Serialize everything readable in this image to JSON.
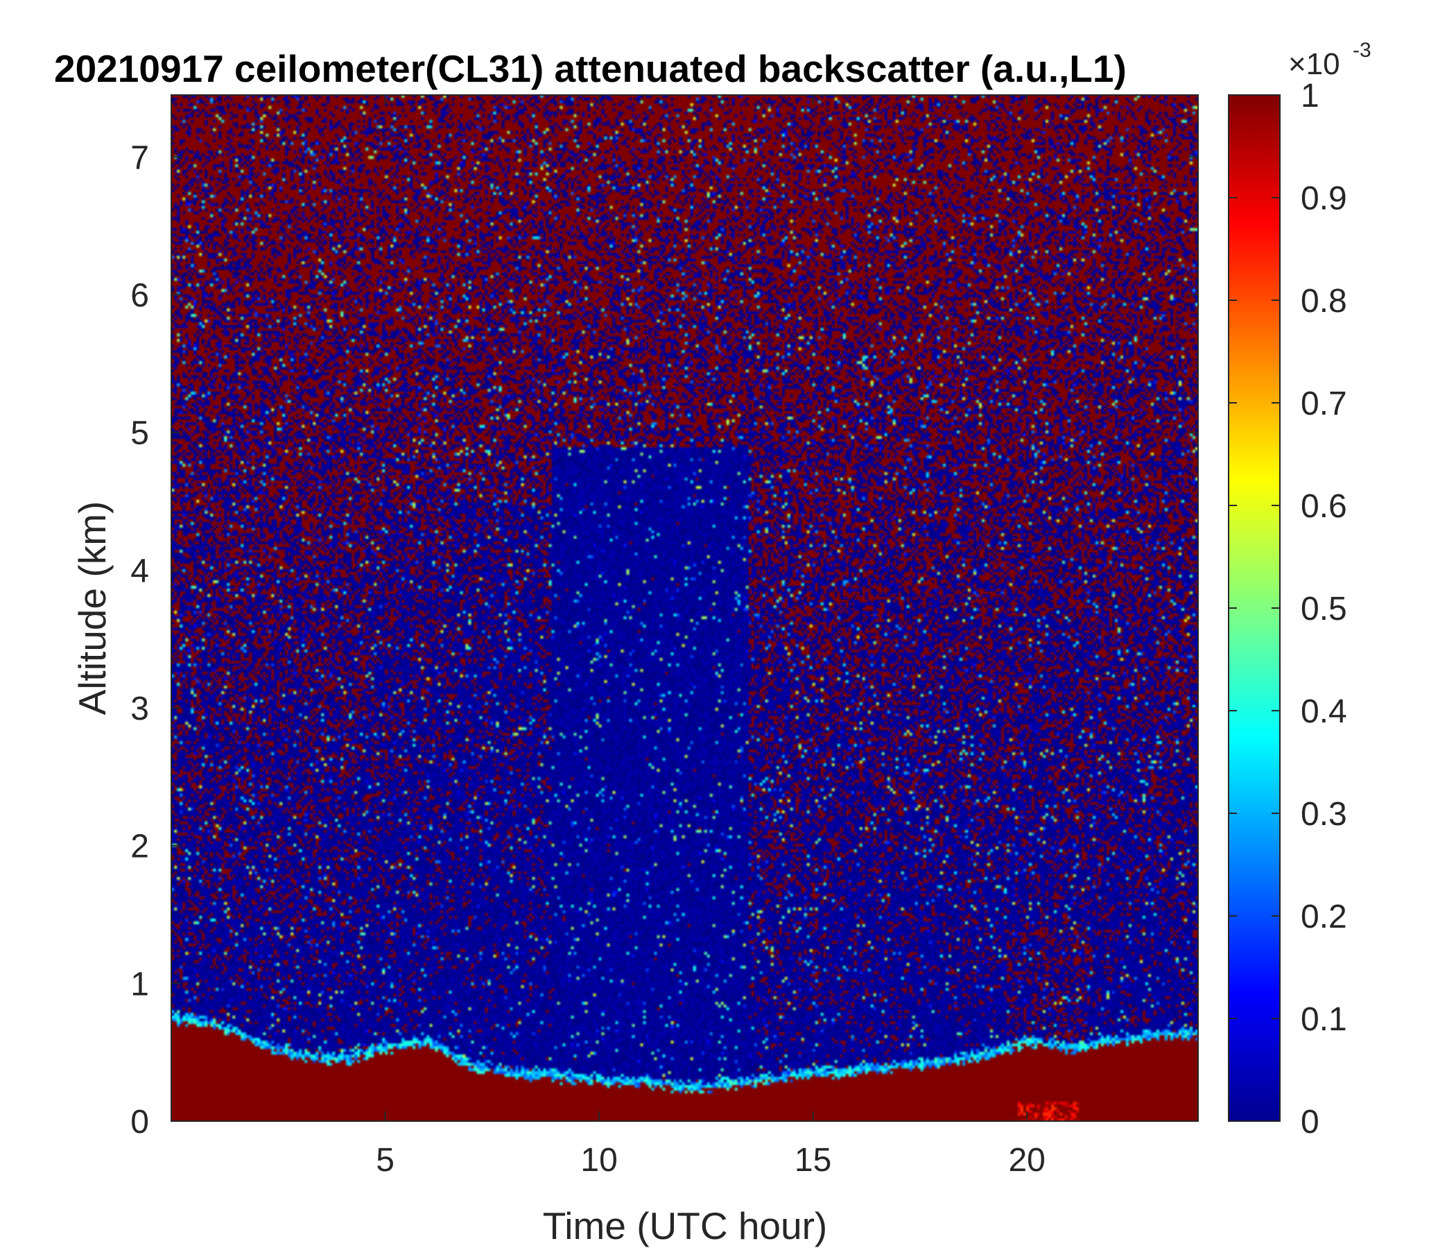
{
  "chart_data": {
    "type": "heatmap",
    "title": "20210917 ceilometer(CL31) attenuated backscatter (a.u.,L1)",
    "xlabel": "Time (UTC hour)",
    "ylabel": "Altitude (km)",
    "xlim": [
      0,
      24
    ],
    "ylim": [
      0,
      7.45
    ],
    "xticks": [
      5,
      10,
      15,
      20
    ],
    "yticks": [
      0,
      1,
      2,
      3,
      4,
      5,
      6,
      7
    ],
    "colorbar": {
      "colormap": "jet",
      "clim": [
        0,
        1
      ],
      "ticks": [
        0,
        0.1,
        0.2,
        0.3,
        0.4,
        0.5,
        0.6,
        0.7,
        0.8,
        0.9,
        1
      ],
      "exponent_base": "×10",
      "exponent_power": "-3"
    },
    "features": {
      "boundary_layer_top_km": [
        [
          0,
          0.72
        ],
        [
          1,
          0.68
        ],
        [
          2,
          0.55
        ],
        [
          3,
          0.45
        ],
        [
          4,
          0.42
        ],
        [
          5,
          0.5
        ],
        [
          6,
          0.55
        ],
        [
          7,
          0.38
        ],
        [
          8,
          0.32
        ],
        [
          9,
          0.3
        ],
        [
          10,
          0.27
        ],
        [
          11,
          0.26
        ],
        [
          12,
          0.22
        ],
        [
          13,
          0.24
        ],
        [
          14,
          0.28
        ],
        [
          15,
          0.32
        ],
        [
          16,
          0.34
        ],
        [
          17,
          0.37
        ],
        [
          18,
          0.4
        ],
        [
          19,
          0.45
        ],
        [
          20,
          0.55
        ],
        [
          21,
          0.5
        ],
        [
          22,
          0.55
        ],
        [
          23,
          0.6
        ],
        [
          24,
          0.6
        ]
      ],
      "clean_region": {
        "x_range": [
          8.9,
          13.5
        ],
        "y_top_km": 4.9
      },
      "hot_spot": {
        "x_range": [
          19.8,
          21.2
        ],
        "y_top_km": 0.15
      }
    }
  }
}
